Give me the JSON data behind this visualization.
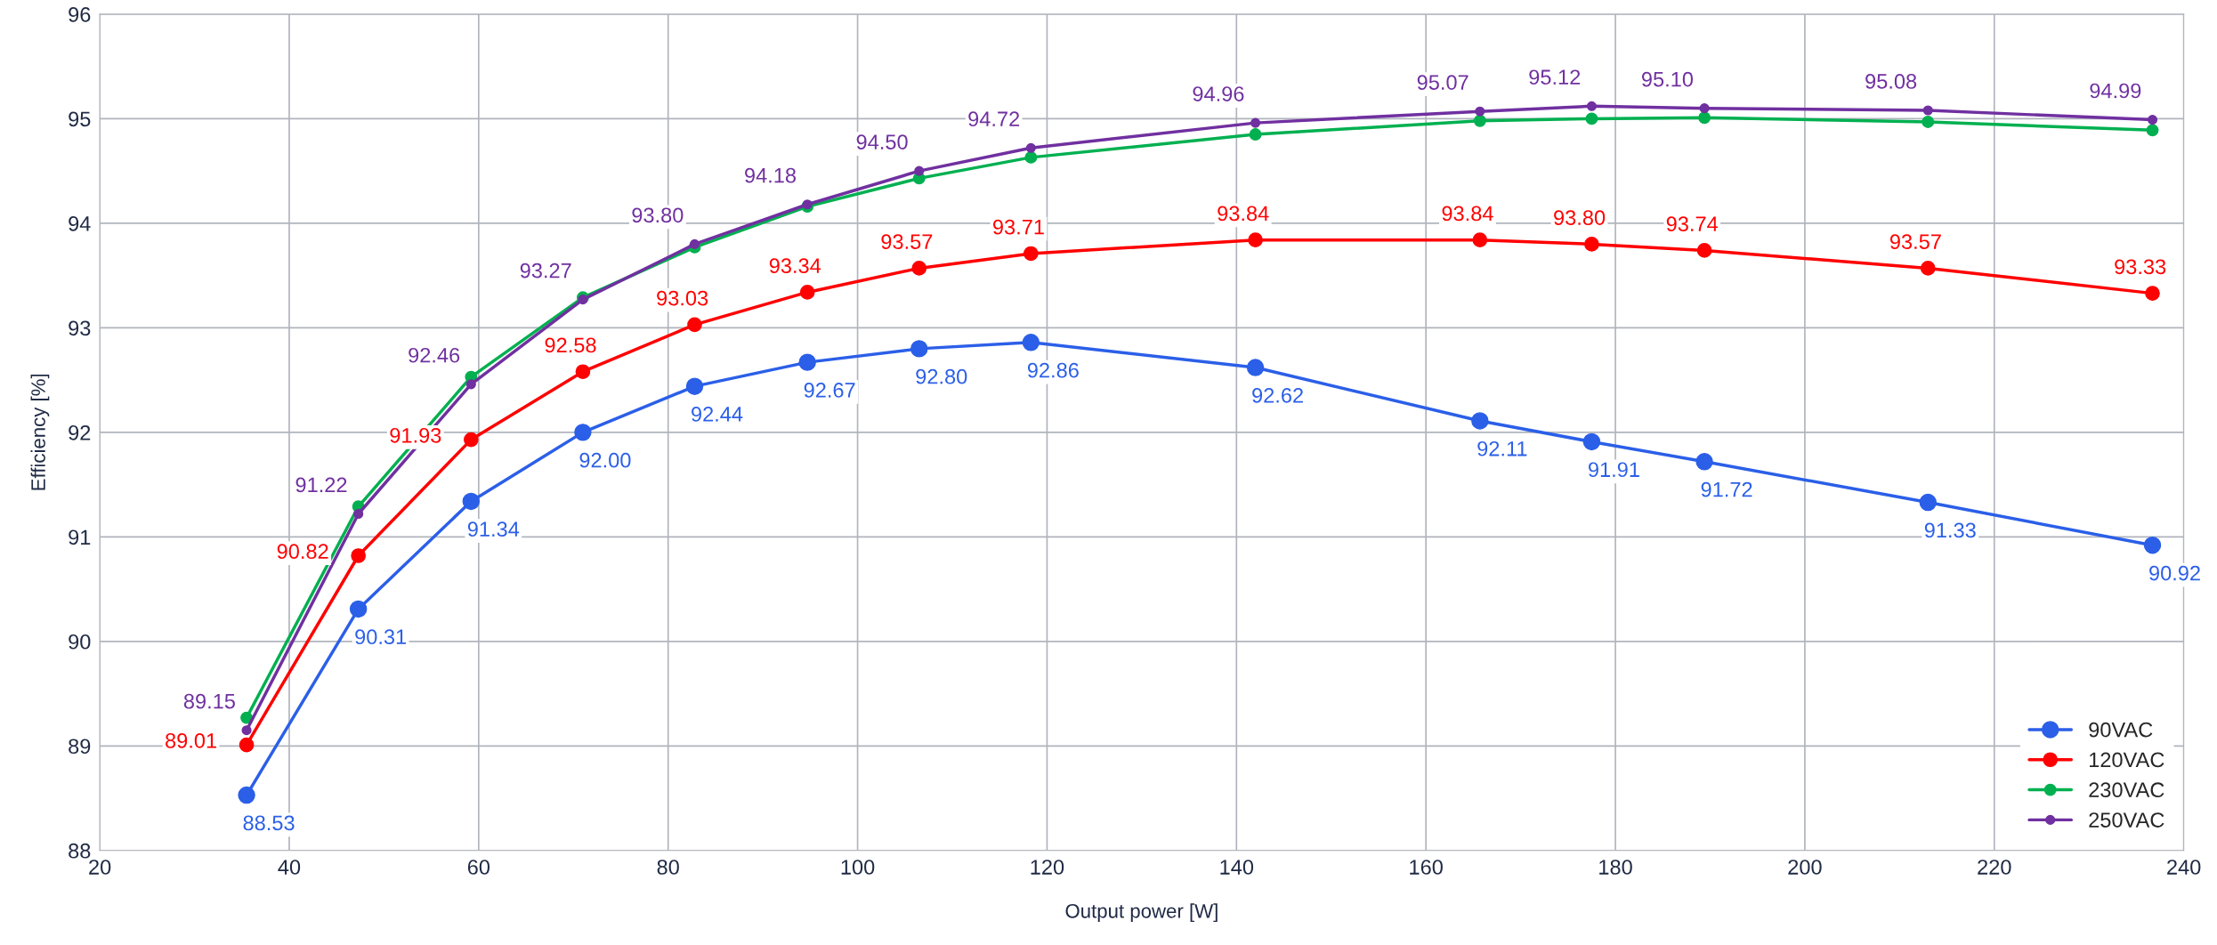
{
  "chart_data": {
    "type": "line",
    "xlabel": "Output power [W]",
    "ylabel": "Efficiency [%]",
    "x": [
      35.5,
      47.3,
      59.2,
      71,
      82.8,
      94.7,
      106.5,
      118.3,
      142,
      165.7,
      177.5,
      189.4,
      213,
      236.7
    ],
    "series": [
      {
        "name": "90VAC",
        "color": "#2b5fe8",
        "values": [
          88.53,
          90.31,
          91.34,
          92.0,
          92.44,
          92.67,
          92.8,
          92.86,
          92.62,
          92.11,
          91.91,
          91.72,
          91.33,
          90.92
        ],
        "value_labels": [
          "88.53",
          "90.31",
          "91.34",
          "92.00",
          "92.44",
          "92.67",
          "92.80",
          "92.86",
          "92.62",
          "92.11",
          "91.91",
          "91.72",
          "91.33",
          "90.92"
        ]
      },
      {
        "name": "120VAC",
        "color": "#ff0000",
        "values": [
          89.01,
          90.82,
          91.93,
          92.58,
          93.03,
          93.34,
          93.57,
          93.71,
          93.84,
          93.84,
          93.8,
          93.74,
          93.57,
          93.33
        ],
        "value_labels": [
          "89.01",
          "90.82",
          "91.93",
          "92.58",
          "93.03",
          "93.34",
          "93.57",
          "93.71",
          "93.84",
          "93.84",
          "93.80",
          "93.74",
          "93.57",
          "93.33"
        ]
      },
      {
        "name": "230VAC",
        "color": "#00b050",
        "values": [
          89.27,
          91.29,
          92.53,
          93.29,
          93.77,
          94.16,
          94.43,
          94.63,
          94.85,
          94.98,
          95.0,
          95.01,
          94.97,
          94.89
        ]
      },
      {
        "name": "250VAC",
        "color": "#7030a0",
        "values": [
          89.15,
          91.22,
          92.46,
          93.27,
          93.8,
          94.18,
          94.5,
          94.72,
          94.96,
          95.07,
          95.12,
          95.1,
          95.08,
          94.99
        ],
        "value_labels": [
          "89.15",
          "91.22",
          "92.46",
          "93.27",
          "93.80",
          "94.18",
          "94.50",
          "94.72",
          "94.96",
          "95.07",
          "95.12",
          "95.10",
          "95.08",
          "94.99"
        ]
      }
    ],
    "xlim": [
      20,
      240
    ],
    "xticks": [
      20,
      40,
      60,
      80,
      100,
      120,
      140,
      160,
      180,
      200,
      220,
      240
    ],
    "ylim": [
      88,
      96
    ],
    "yticks": [
      88,
      89,
      90,
      91,
      92,
      93,
      94,
      95,
      96
    ],
    "grid": true,
    "legend": "bottom right",
    "marker": "circle",
    "line_style": "solid"
  }
}
